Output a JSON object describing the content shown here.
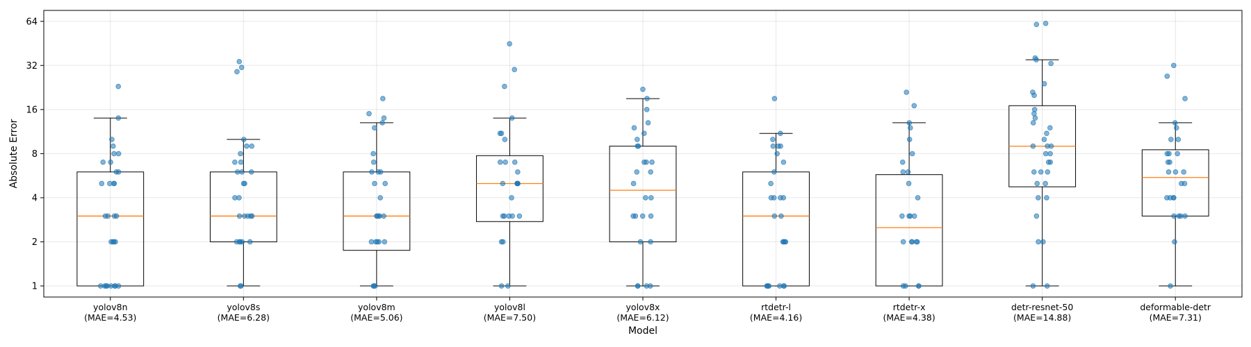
{
  "chart_data": {
    "type": "box",
    "title": "",
    "xlabel": "Model",
    "ylabel": "Absolute Error",
    "y_scale": "log2",
    "ylim": [
      0.84,
      76
    ],
    "yticks": [
      1,
      2,
      4,
      8,
      16,
      32,
      64
    ],
    "grid": true,
    "colors": {
      "box": "#000000",
      "median": "#ff7f0e",
      "points": "#1f77b4"
    },
    "series": [
      {
        "name": "yolov8n",
        "mae_label": "(MAE=4.53)",
        "q1": 1,
        "median": 3,
        "q3": 6,
        "whisker_low": 1,
        "whisker_high": 14,
        "points": [
          1,
          1,
          1,
          1,
          1,
          1,
          1,
          1,
          2,
          2,
          2,
          2,
          3,
          3,
          3,
          3,
          5,
          5,
          5,
          5,
          6,
          6,
          7,
          7,
          8,
          8,
          9,
          10,
          14,
          23
        ]
      },
      {
        "name": "yolov8s",
        "mae_label": "(MAE=6.28)",
        "q1": 2,
        "median": 3,
        "q3": 6,
        "whisker_low": 1,
        "whisker_high": 10,
        "points": [
          1,
          1,
          2,
          2,
          2,
          2,
          2,
          3,
          3,
          3,
          3,
          3,
          4,
          4,
          5,
          5,
          6,
          6,
          6,
          7,
          7,
          8,
          9,
          9,
          10,
          29,
          31,
          34
        ]
      },
      {
        "name": "yolov8m",
        "mae_label": "(MAE=5.06)",
        "q1": 1.75,
        "median": 3,
        "q3": 6,
        "whisker_low": 1,
        "whisker_high": 13,
        "points": [
          1,
          1,
          1,
          2,
          2,
          2,
          2,
          2,
          3,
          3,
          3,
          3,
          3,
          4,
          5,
          5,
          6,
          6,
          6,
          7,
          8,
          12,
          13,
          14,
          15,
          19
        ]
      },
      {
        "name": "yolov8l",
        "mae_label": "(MAE=7.50)",
        "q1": 2.75,
        "median": 5,
        "q3": 7.75,
        "whisker_low": 1,
        "whisker_high": 14,
        "points": [
          1,
          1,
          2,
          2,
          3,
          3,
          3,
          3,
          3,
          4,
          5,
          5,
          5,
          5,
          5,
          6,
          7,
          7,
          7,
          10,
          11,
          11,
          14,
          23,
          30,
          45
        ]
      },
      {
        "name": "yolov8x",
        "mae_label": "(MAE=6.12)",
        "q1": 2,
        "median": 4.5,
        "q3": 9,
        "whisker_low": 1,
        "whisker_high": 19,
        "points": [
          1,
          1,
          1,
          1,
          2,
          2,
          3,
          3,
          3,
          3,
          4,
          4,
          5,
          6,
          6,
          7,
          7,
          7,
          9,
          9,
          10,
          11,
          12,
          13,
          16,
          19,
          22
        ]
      },
      {
        "name": "rtdetr-l",
        "mae_label": "(MAE=4.16)",
        "q1": 1,
        "median": 3,
        "q3": 6,
        "whisker_low": 1,
        "whisker_high": 11,
        "points": [
          1,
          1,
          1,
          1,
          1,
          1,
          1,
          2,
          2,
          2,
          2,
          3,
          3,
          4,
          4,
          4,
          4,
          5,
          6,
          7,
          8,
          9,
          9,
          9,
          10,
          11,
          19
        ]
      },
      {
        "name": "rtdetr-x",
        "mae_label": "(MAE=4.38)",
        "q1": 1,
        "median": 2.5,
        "q3": 5.75,
        "whisker_low": 1,
        "whisker_high": 13,
        "points": [
          1,
          1,
          1,
          1,
          2,
          2,
          2,
          2,
          2,
          3,
          3,
          3,
          3,
          4,
          5,
          6,
          6,
          7,
          8,
          10,
          12,
          13,
          17,
          21
        ]
      },
      {
        "name": "detr-resnet-50",
        "mae_label": "(MAE=14.88)",
        "q1": 4.75,
        "median": 9,
        "q3": 17,
        "whisker_low": 1,
        "whisker_high": 35,
        "points": [
          1,
          1,
          2,
          2,
          3,
          4,
          4,
          5,
          5,
          6,
          6,
          6,
          7,
          7,
          8,
          8,
          9,
          9,
          9,
          10,
          11,
          12,
          13,
          14,
          15,
          16,
          20,
          21,
          24,
          33,
          35,
          36,
          61,
          62
        ]
      },
      {
        "name": "deformable-detr",
        "mae_label": "(MAE=7.31)",
        "q1": 3,
        "median": 5.5,
        "q3": 8.5,
        "whisker_low": 1,
        "whisker_high": 13,
        "points": [
          1,
          2,
          3,
          3,
          3,
          3,
          4,
          4,
          4,
          4,
          5,
          5,
          6,
          6,
          6,
          7,
          7,
          8,
          8,
          8,
          10,
          10,
          12,
          13,
          19,
          27,
          32
        ]
      }
    ]
  }
}
